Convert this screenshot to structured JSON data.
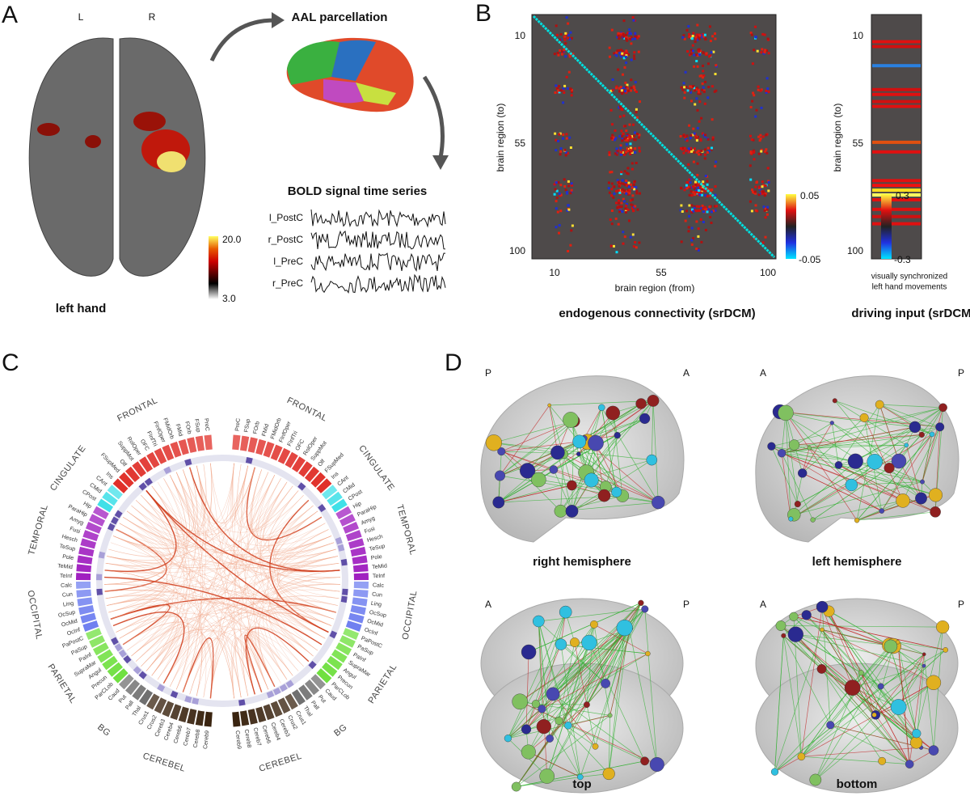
{
  "panels": {
    "a": {
      "letter": "A",
      "hemispheres": [
        "L",
        "R"
      ],
      "parcellation": "AAL parcellation",
      "bold_title": "BOLD signal time series",
      "signals": [
        "l_PostC",
        "r_PostC",
        "l_PreC",
        "r_PreC"
      ],
      "colorbar": [
        "20.0",
        "3.0"
      ],
      "caption": "left hand"
    },
    "b": {
      "letter": "B",
      "matrix": {
        "ticks": [
          "10",
          "55",
          "100"
        ],
        "ylabel": "brain region (to)",
        "xlabel": "brain region (from)",
        "colorbar": [
          "0.05",
          "-0.05"
        ],
        "caption": "endogenous connectivity (srDCM)"
      },
      "input": {
        "ticks": [
          "10",
          "55",
          "100"
        ],
        "ylabel": "brain region (to)",
        "xlabel": [
          "visually synchronized",
          "left hand movements"
        ],
        "colorbar": [
          "0.3",
          "-0.3"
        ],
        "caption": "driving input (srDCM)"
      }
    },
    "c": {
      "letter": "C",
      "lobes": [
        {
          "name": "FRONTAL",
          "regions": [
            "PreC",
            "FSup",
            "FOrb",
            "FMid",
            "FMidOrb",
            "FInfOper",
            "FInfTri",
            "OFC",
            "RolOper",
            "SuppMot",
            "Olf",
            "FSupMed",
            "Ins"
          ]
        },
        {
          "name": "CINGULATE",
          "regions": [
            "CAnt",
            "CMid",
            "CPost"
          ]
        },
        {
          "name": "TEMPORAL",
          "regions": [
            "Hip",
            "ParaHip",
            "Amyg",
            "Fusi",
            "Hesch",
            "TeSup",
            "Pole",
            "TeMid",
            "TeInf"
          ]
        },
        {
          "name": "OCCIPITAL",
          "regions": [
            "Calc",
            "Cun",
            "Ling",
            "OcSup",
            "OcMid",
            "OcInf"
          ]
        },
        {
          "name": "PARIETAL",
          "regions": [
            "PaPostC",
            "PaSup",
            "PaInf",
            "SupraMar",
            "Angul",
            "Precun",
            "ParCLob"
          ]
        },
        {
          "name": "BG",
          "regions": [
            "Caud",
            "Put",
            "Pall",
            "Thal"
          ]
        },
        {
          "name": "CEREBEL",
          "regions": [
            "Crus1",
            "Crus2",
            "Cereb3",
            "Cereb4",
            "Cereb6",
            "Cereb7",
            "Cereb8",
            "Cereb9"
          ]
        }
      ]
    },
    "d": {
      "letter": "D",
      "views": [
        {
          "left": "P",
          "right": "A",
          "caption": "right hemisphere"
        },
        {
          "left": "A",
          "right": "P",
          "caption": "left hemisphere"
        },
        {
          "left": "A",
          "right": "P",
          "caption": "top"
        },
        {
          "left": "A",
          "right": "P",
          "caption": "bottom"
        }
      ]
    }
  }
}
